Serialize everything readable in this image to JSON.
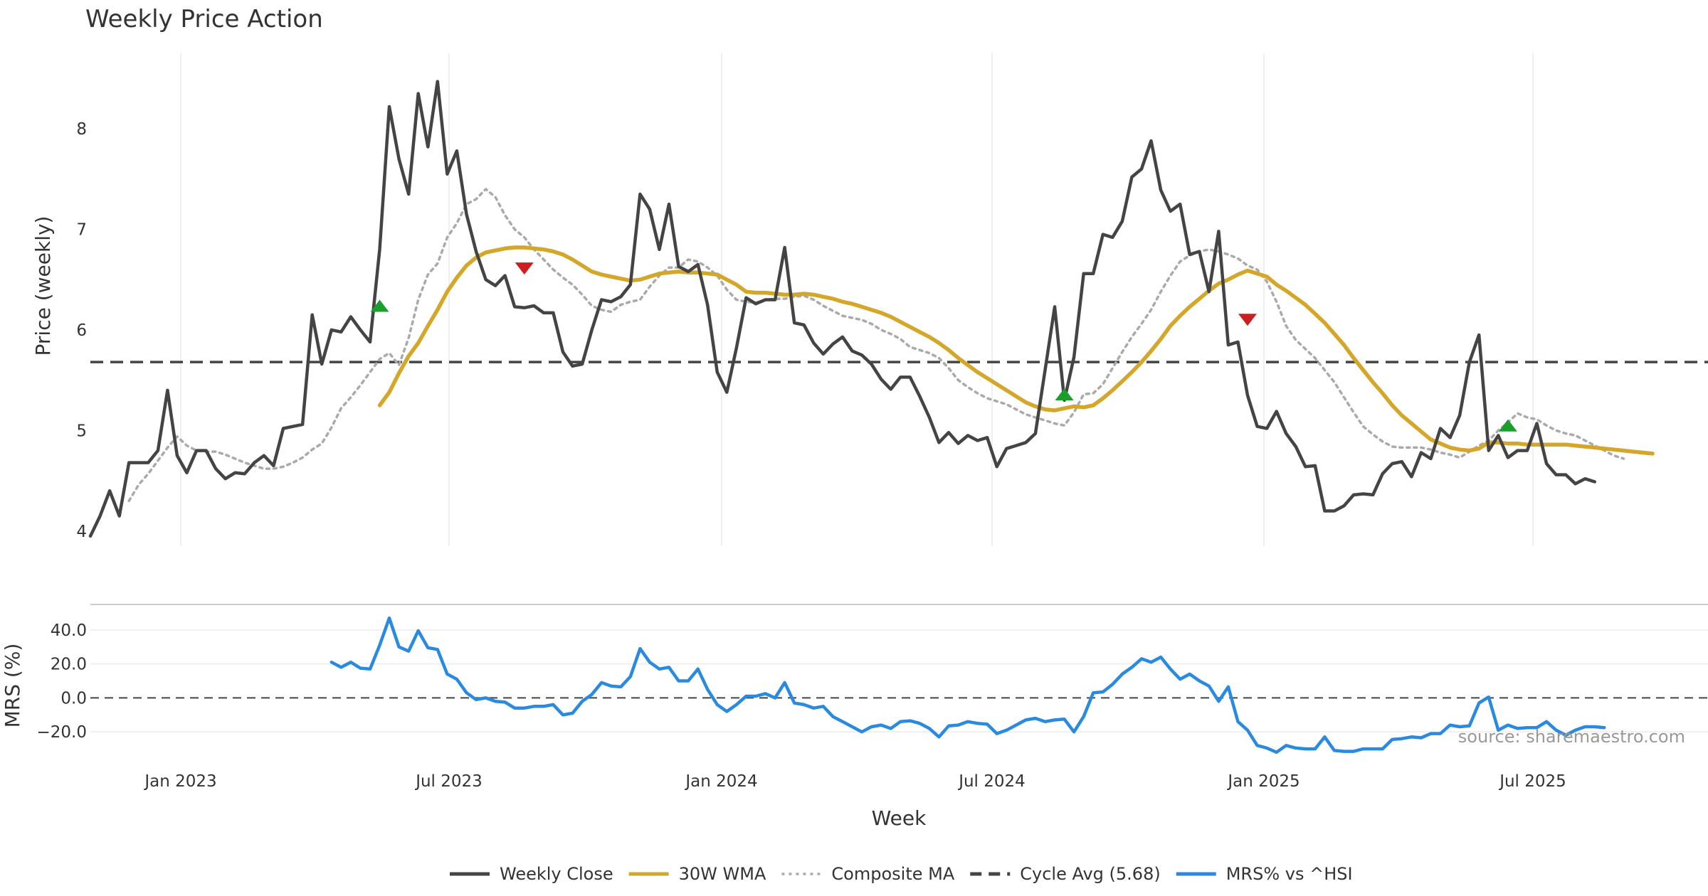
{
  "chart_data": {
    "type": "line",
    "title": "Weekly Price Action",
    "xlabel": "Week",
    "x_ticks": [
      "Jan 2023",
      "Jul 2023",
      "Jan 2024",
      "Jul 2024",
      "Jan 2025",
      "Jul 2025"
    ],
    "source": "source: sharemaestro.com",
    "colors": {
      "close": "#444444",
      "wma": "#d4a62a",
      "composite": "#aaaaaa",
      "cycle": "#444444",
      "mrs": "#2a8ae0",
      "up": "#1a9e2c",
      "down": "#cc1f1f"
    },
    "price_panel": {
      "ylabel": "Price (weekly)",
      "ylim": [
        3.85,
        8.75
      ],
      "yticks": [
        4,
        5,
        6,
        7,
        8
      ],
      "cycle_avg": 5.68,
      "series": [
        {
          "name": "Weekly Close",
          "key": "close",
          "values": [
            3.95,
            4.15,
            4.4,
            4.15,
            4.68,
            4.68,
            4.68,
            4.8,
            5.4,
            4.75,
            4.58,
            4.8,
            4.8,
            4.62,
            4.52,
            4.58,
            4.57,
            4.68,
            4.75,
            4.65,
            5.02,
            5.04,
            5.06,
            6.15,
            5.66,
            6.0,
            5.98,
            6.13,
            6.0,
            5.88,
            6.8,
            8.22,
            7.7,
            7.35,
            8.35,
            7.82,
            8.47,
            7.55,
            7.78,
            7.15,
            6.78,
            6.5,
            6.44,
            6.54,
            6.23,
            6.22,
            6.24,
            6.17,
            6.17,
            5.78,
            5.64,
            5.66,
            6.0,
            6.3,
            6.28,
            6.33,
            6.45,
            7.35,
            7.2,
            6.8,
            7.25,
            6.63,
            6.58,
            6.65,
            6.25,
            5.58,
            5.38,
            5.82,
            6.32,
            6.26,
            6.3,
            6.3,
            6.82,
            6.07,
            6.05,
            5.87,
            5.76,
            5.86,
            5.93,
            5.79,
            5.75,
            5.66,
            5.51,
            5.41,
            5.53,
            5.53,
            5.34,
            5.13,
            4.88,
            4.98,
            4.87,
            4.95,
            4.9,
            4.93,
            4.64,
            4.82,
            4.85,
            4.88,
            4.97,
            5.6,
            6.23,
            5.3,
            5.73,
            6.56,
            6.56,
            6.95,
            6.92,
            7.08,
            7.52,
            7.6,
            7.88,
            7.39,
            7.18,
            7.25,
            6.75,
            6.78,
            6.38,
            6.98,
            5.85,
            5.88,
            5.35,
            5.04,
            5.02,
            5.19,
            4.97,
            4.84,
            4.64,
            4.65,
            4.2,
            4.2,
            4.25,
            4.36,
            4.37,
            4.36,
            4.57,
            4.67,
            4.69,
            4.54,
            4.78,
            4.72,
            5.02,
            4.93,
            5.15,
            5.68,
            5.95,
            4.8,
            4.95,
            4.73,
            4.8,
            4.8,
            5.07,
            4.67,
            4.56,
            4.56,
            4.47,
            4.52,
            4.49
          ]
        },
        {
          "name": "30W WMA",
          "key": "wma",
          "start": 30,
          "values": [
            5.25,
            5.38,
            5.57,
            5.74,
            5.87,
            6.04,
            6.2,
            6.38,
            6.52,
            6.64,
            6.72,
            6.77,
            6.79,
            6.81,
            6.82,
            6.82,
            6.81,
            6.8,
            6.78,
            6.75,
            6.7,
            6.64,
            6.58,
            6.55,
            6.53,
            6.51,
            6.49,
            6.5,
            6.53,
            6.56,
            6.57,
            6.58,
            6.57,
            6.57,
            6.56,
            6.55,
            6.5,
            6.45,
            6.38,
            6.37,
            6.37,
            6.36,
            6.35,
            6.35,
            6.36,
            6.35,
            6.33,
            6.31,
            6.28,
            6.26,
            6.23,
            6.2,
            6.17,
            6.13,
            6.08,
            6.03,
            5.98,
            5.93,
            5.87,
            5.8,
            5.72,
            5.65,
            5.58,
            5.52,
            5.46,
            5.4,
            5.34,
            5.28,
            5.24,
            5.21,
            5.2,
            5.22,
            5.24,
            5.23,
            5.25,
            5.32,
            5.4,
            5.49,
            5.58,
            5.68,
            5.79,
            5.91,
            6.04,
            6.14,
            6.23,
            6.31,
            6.39,
            6.46,
            6.5,
            6.55,
            6.59,
            6.56,
            6.53,
            6.45,
            6.39,
            6.32,
            6.25,
            6.16,
            6.07,
            5.96,
            5.85,
            5.72,
            5.6,
            5.48,
            5.37,
            5.25,
            5.15,
            5.07,
            4.99,
            4.91,
            4.87,
            4.83,
            4.81,
            4.8,
            4.82,
            4.88,
            4.88,
            4.87,
            4.87,
            4.86,
            4.86,
            4.86,
            4.86,
            4.86,
            4.85,
            4.84,
            4.83,
            4.82,
            4.81,
            4.8,
            4.79,
            4.78,
            4.77
          ]
        },
        {
          "name": "Composite MA",
          "key": "composite",
          "start": 4,
          "values": [
            4.3,
            4.46,
            4.57,
            4.7,
            4.83,
            4.94,
            4.85,
            4.8,
            4.79,
            4.79,
            4.76,
            4.72,
            4.68,
            4.65,
            4.62,
            4.62,
            4.64,
            4.68,
            4.73,
            4.81,
            4.87,
            5.03,
            5.22,
            5.33,
            5.45,
            5.58,
            5.71,
            5.77,
            5.65,
            5.92,
            6.3,
            6.55,
            6.66,
            6.92,
            7.06,
            7.25,
            7.3,
            7.4,
            7.32,
            7.14,
            7.0,
            6.92,
            6.8,
            6.7,
            6.6,
            6.52,
            6.45,
            6.35,
            6.24,
            6.2,
            6.18,
            6.25,
            6.28,
            6.3,
            6.43,
            6.54,
            6.62,
            6.62,
            6.7,
            6.68,
            6.62,
            6.54,
            6.4,
            6.3,
            6.28,
            6.27,
            6.3,
            6.31,
            6.31,
            6.33,
            6.34,
            6.3,
            6.24,
            6.19,
            6.14,
            6.12,
            6.1,
            6.06,
            6.0,
            5.96,
            5.91,
            5.83,
            5.8,
            5.77,
            5.72,
            5.62,
            5.5,
            5.43,
            5.37,
            5.32,
            5.29,
            5.26,
            5.21,
            5.16,
            5.13,
            5.1,
            5.07,
            5.05,
            5.18,
            5.36,
            5.37,
            5.46,
            5.62,
            5.78,
            5.93,
            6.06,
            6.2,
            6.38,
            6.54,
            6.68,
            6.74,
            6.78,
            6.8,
            6.78,
            6.75,
            6.71,
            6.64,
            6.6,
            6.48,
            6.28,
            6.04,
            5.9,
            5.81,
            5.72,
            5.6,
            5.48,
            5.33,
            5.18,
            5.04,
            4.96,
            4.89,
            4.84,
            4.83,
            4.83,
            4.83,
            4.81,
            4.78,
            4.76,
            4.73,
            4.79,
            4.85,
            4.9,
            5.0,
            5.08,
            5.17,
            5.13,
            5.11,
            5.05,
            5.0,
            4.97,
            4.95,
            4.9,
            4.85,
            4.8,
            4.75,
            4.72
          ]
        }
      ],
      "signals": [
        {
          "type": "up",
          "index": 30,
          "value": 6.24
        },
        {
          "type": "down",
          "index": 45,
          "value": 6.61
        },
        {
          "type": "up",
          "index": 101,
          "value": 5.36
        },
        {
          "type": "down",
          "index": 120,
          "value": 6.1
        },
        {
          "type": "up",
          "index": 147,
          "value": 5.05
        }
      ]
    },
    "mrs_panel": {
      "ylabel": "MRS (%)",
      "ylim": [
        -35,
        55
      ],
      "yticks": [
        "40.0",
        "20.0",
        "0.0",
        "−20.0"
      ],
      "ytick_values": [
        40,
        20,
        0,
        -20
      ],
      "zero_line": 0,
      "series": [
        {
          "name": "MRS% vs ^HSI",
          "key": "mrs",
          "start": 25,
          "values": [
            21,
            18,
            21,
            17.5,
            17,
            31,
            47,
            30,
            27.5,
            39.5,
            29.5,
            28.5,
            14,
            11,
            3,
            -1,
            0,
            -2,
            -2.5,
            -6,
            -6,
            -5,
            -5,
            -4,
            -10,
            -9,
            -2,
            2,
            9,
            7,
            6.5,
            12.5,
            29,
            21,
            17,
            18,
            10,
            10,
            17,
            5,
            -4,
            -8,
            -4,
            1,
            1,
            2.5,
            0,
            9,
            -3,
            -4,
            -6,
            -5,
            -11,
            -14,
            -17,
            -20,
            -17,
            -16,
            -18,
            -14,
            -13.5,
            -15,
            -18,
            -23,
            -16.5,
            -16,
            -14,
            -15,
            -15.5,
            -21,
            -19,
            -16,
            -13,
            -12,
            -14,
            -13,
            -12.5,
            -20,
            -11,
            3,
            3.5,
            8,
            14,
            18,
            23,
            21,
            24,
            17,
            11,
            14,
            10,
            7,
            -2,
            6.5,
            -14,
            -19,
            -28,
            -29.5,
            -32,
            -28,
            -29.5,
            -30,
            -30,
            -23,
            -31,
            -31.5,
            -31.5,
            -30,
            -30,
            -30,
            -24.5,
            -24,
            -23,
            -23.5,
            -21,
            -21,
            -16,
            -17,
            -16.5,
            -3,
            0.5,
            -19,
            -16,
            -18,
            -17.5,
            -17.5,
            -14,
            -19,
            -22,
            -19,
            -17,
            -17,
            -17.5
          ]
        }
      ]
    },
    "legend": [
      {
        "label": "Weekly Close",
        "style": "solid",
        "key": "close"
      },
      {
        "label": "30W WMA",
        "style": "solid",
        "key": "wma"
      },
      {
        "label": "Composite MA",
        "style": "dotted",
        "key": "composite"
      },
      {
        "label": "Cycle Avg (5.68)",
        "style": "dashed",
        "key": "cycle"
      },
      {
        "label": "MRS% vs ^HSI",
        "style": "solid",
        "key": "mrs"
      }
    ]
  }
}
